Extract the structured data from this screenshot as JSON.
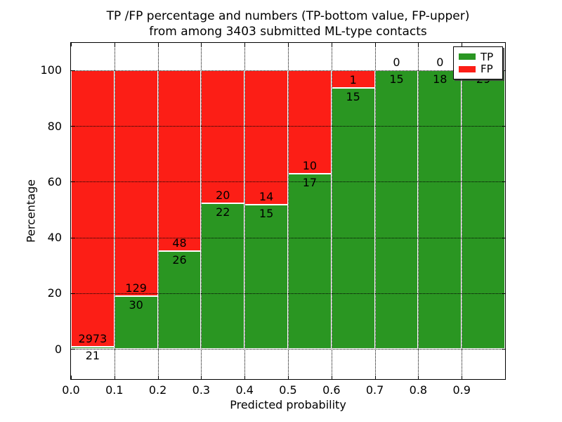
{
  "title": {
    "line1": "TP /FP percentage and numbers (TP-bottom value, FP-upper)",
    "line2": "from among 3403 submitted ML-type contacts"
  },
  "axes": {
    "xlabel": "Predicted probability",
    "ylabel": "Percentage",
    "x_tick_values": [
      0.0,
      0.1,
      0.2,
      0.3,
      0.4,
      0.5,
      0.6,
      0.7,
      0.8,
      0.9
    ],
    "x_tick_labels": [
      "0.0",
      "0.1",
      "0.2",
      "0.3",
      "0.4",
      "0.5",
      "0.6",
      "0.7",
      "0.8",
      "0.9"
    ],
    "y_tick_values": [
      0,
      20,
      40,
      60,
      80,
      100
    ],
    "y_tick_labels": [
      "0",
      "20",
      "40",
      "60",
      "80",
      "100"
    ],
    "xlim": [
      0.0,
      1.0
    ],
    "ylim": [
      -10.8,
      109.8
    ],
    "grid": "dotted"
  },
  "legend": {
    "position": "upper-right",
    "items": [
      {
        "label": "TP",
        "color": "#2a9622"
      },
      {
        "label": "FP",
        "color": "#fc1e16"
      }
    ]
  },
  "chart_data": {
    "type": "bar",
    "stacked": true,
    "normalized_to": 100,
    "title": "TP /FP percentage and numbers (TP-bottom value, FP-upper) from among 3403 submitted ML-type contacts",
    "xlabel": "Predicted probability",
    "ylabel": "Percentage",
    "total_contacts": 3403,
    "bin_width": 0.1,
    "bins": [
      {
        "x_start": 0.0,
        "x_end": 0.1,
        "tp": 21,
        "fp": 2973,
        "tp_percent": 0.7
      },
      {
        "x_start": 0.1,
        "x_end": 0.2,
        "tp": 30,
        "fp": 129,
        "tp_percent": 18.9
      },
      {
        "x_start": 0.2,
        "x_end": 0.3,
        "tp": 26,
        "fp": 48,
        "tp_percent": 35.1
      },
      {
        "x_start": 0.3,
        "x_end": 0.4,
        "tp": 22,
        "fp": 20,
        "tp_percent": 52.4
      },
      {
        "x_start": 0.4,
        "x_end": 0.5,
        "tp": 15,
        "fp": 14,
        "tp_percent": 51.7
      },
      {
        "x_start": 0.5,
        "x_end": 0.6,
        "tp": 17,
        "fp": 10,
        "tp_percent": 63.0
      },
      {
        "x_start": 0.6,
        "x_end": 0.7,
        "tp": 15,
        "fp": 1,
        "tp_percent": 93.8
      },
      {
        "x_start": 0.7,
        "x_end": 0.8,
        "tp": 15,
        "fp": 0,
        "tp_percent": 100
      },
      {
        "x_start": 0.8,
        "x_end": 0.9,
        "tp": 18,
        "fp": 0,
        "tp_percent": 100
      },
      {
        "x_start": 0.9,
        "x_end": 1.0,
        "tp": 29,
        "fp": 0,
        "tp_percent": 100
      }
    ],
    "colors": {
      "tp": "#2a9622",
      "fp": "#fc1e16",
      "bar_edge": "#ffffff",
      "grid": "#000000"
    }
  }
}
